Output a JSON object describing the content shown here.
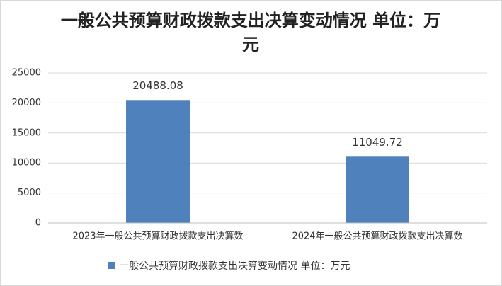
{
  "chart_data": {
    "type": "bar",
    "title": "一般公共预算财政拨款支出决算变动情况 单位：万元",
    "categories": [
      "2023年一般公共预算财政拨款支出决算数",
      "2024年一般公共预算财政拨款支出决算数"
    ],
    "series": [
      {
        "name": "一般公共预算财政拨款支出决算变动情况 单位：万元",
        "color": "#4f81bd",
        "values": [
          20488.08,
          11049.72
        ]
      }
    ],
    "ylim": [
      0,
      25000
    ],
    "yticks": [
      0,
      5000,
      10000,
      15000,
      20000,
      25000
    ],
    "grid": true,
    "legend": "bottom"
  }
}
